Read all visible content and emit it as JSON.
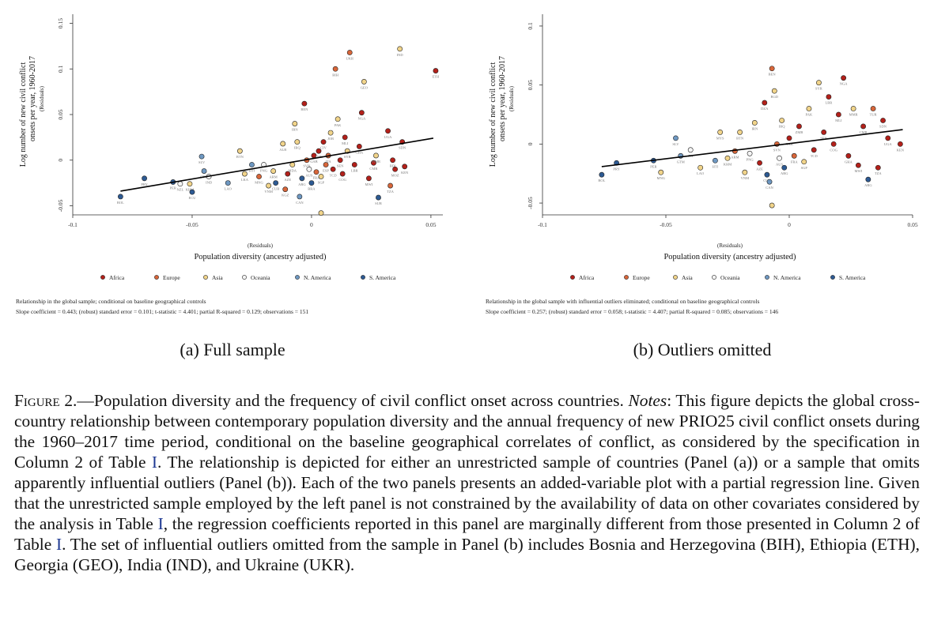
{
  "panels": [
    {
      "id": "a",
      "subcaption": "(a) Full sample",
      "note_line1": "Relationship in the global sample; conditional on baseline geographical controls",
      "note_line2": "Slope coefficient = 0.443; (robust) standard error = 0.101; t-statistic = 4.401; partial R-squared = 0.129; observations = 151"
    },
    {
      "id": "b",
      "subcaption": "(b) Outliers omitted",
      "note_line1": "Relationship in the global sample with influential outliers eliminated; conditional on baseline geographical controls",
      "note_line2": "Slope coefficient = 0.257; (robust) standard error = 0.058; t-statistic = 4.407; partial R-squared = 0.085; observations = 146"
    }
  ],
  "colors": {
    "Africa": "#b3201a",
    "Europe": "#d8663a",
    "Asia": "#f1d48a",
    "Oceania": "#f4f4f4",
    "N. America": "#6e98c2",
    "S. America": "#2d5a93"
  },
  "caption": {
    "figure_label": "Figure 2.",
    "title": "—Population diversity and the frequency of civil conflict onset across countries. ",
    "notes_label": "Notes",
    "text_1": ": This figure depicts the global cross-country relationship between contemporary population diversity and the annual frequency of new PRIO25 civil conflict onsets during the 1960–2017 time period, conditional on the baseline geographical correlates of conflict, as considered by the specification in Column 2 of Table ",
    "ref_1": "I",
    "text_2": ". The relationship is depicted for either an unrestricted sample of countries (Panel (a)) or a sample that omits apparently influential outliers (Panel (b)). Each of the two panels presents an added-variable plot with a partial regression line. Given that the unrestricted sample employed by the left panel is not constrained by the availability of data on other covariates considered by the analysis in Table ",
    "ref_2": "I",
    "text_3": ", the regression coefficients reported in this panel are marginally different from those presented in Column 2 of Table ",
    "ref_3": "I",
    "text_4": ". The set of influential outliers omitted from the sample in Panel (b) includes Bosnia and Herzegovina (BIH), Ethiopia (ETH), Georgia (GEO), India (IND), and Ukraine (UKR)."
  },
  "chart_data": [
    {
      "type": "scatter",
      "panel": "a",
      "title": "",
      "xlabel": "Population diversity (ancestry adjusted)",
      "xlabel_sub": "(Residuals)",
      "ylabel": "Log number of new civil conflict onsets per year, 1960-2017",
      "ylabel_sub": "(Residuals)",
      "xlim": [
        -0.1,
        0.055
      ],
      "ylim": [
        -0.06,
        0.16
      ],
      "xticks": [
        -0.1,
        -0.05,
        0,
        0.05
      ],
      "xtick_labels": [
        "-0.1",
        "-0.05",
        "0",
        "0.05"
      ],
      "yticks": [
        -0.05,
        0,
        0.05,
        0.1,
        0.15
      ],
      "ytick_labels": [
        "-0.05",
        "0",
        "0.05",
        "0.1",
        "0.15"
      ],
      "grid": false,
      "legend": [
        "Africa",
        "Europe",
        "Asia",
        "Oceania",
        "N. America",
        "S. America"
      ],
      "legend_position": "bottom",
      "fit_line": {
        "slope": 0.443,
        "intercept": 0.0015,
        "x_range": [
          -0.08,
          0.051
        ]
      },
      "points": [
        {
          "x": -0.08,
          "y": -0.04,
          "region": "S. America",
          "label": "BOL"
        },
        {
          "x": -0.07,
          "y": -0.02,
          "region": "S. America",
          "label": "PRY"
        },
        {
          "x": -0.058,
          "y": -0.024,
          "region": "S. America",
          "label": "PER"
        },
        {
          "x": -0.055,
          "y": -0.026,
          "region": "Oceania",
          "label": "NZL"
        },
        {
          "x": -0.051,
          "y": -0.026,
          "region": "Asia",
          "label": "KHM"
        },
        {
          "x": -0.05,
          "y": -0.035,
          "region": "S. America",
          "label": "ECU"
        },
        {
          "x": -0.046,
          "y": 0.004,
          "region": "N. America",
          "label": "SLV"
        },
        {
          "x": -0.045,
          "y": -0.012,
          "region": "N. America",
          "label": "GTM"
        },
        {
          "x": -0.043,
          "y": -0.018,
          "region": "Oceania",
          "label": "IND"
        },
        {
          "x": -0.035,
          "y": -0.025,
          "region": "N. America",
          "label": "LAO"
        },
        {
          "x": -0.03,
          "y": 0.01,
          "region": "Asia",
          "label": "BTN"
        },
        {
          "x": -0.028,
          "y": -0.015,
          "region": "Asia",
          "label": "LKA"
        },
        {
          "x": -0.025,
          "y": -0.005,
          "region": "N. America",
          "label": "HTI"
        },
        {
          "x": -0.022,
          "y": -0.018,
          "region": "Europe",
          "label": "MNG"
        },
        {
          "x": -0.02,
          "y": -0.005,
          "region": "Oceania",
          "label": "PNG"
        },
        {
          "x": -0.018,
          "y": -0.028,
          "region": "Asia",
          "label": "VNM"
        },
        {
          "x": -0.016,
          "y": -0.012,
          "region": "Asia",
          "label": "ARM"
        },
        {
          "x": -0.015,
          "y": -0.025,
          "region": "S. America",
          "label": "CUB"
        },
        {
          "x": -0.012,
          "y": 0.018,
          "region": "Asia",
          "label": "ALB"
        },
        {
          "x": -0.011,
          "y": -0.032,
          "region": "Europe",
          "label": "KGZ"
        },
        {
          "x": -0.01,
          "y": -0.015,
          "region": "Africa",
          "label": "AZE"
        },
        {
          "x": -0.008,
          "y": -0.005,
          "region": "Asia",
          "label": "MDA"
        },
        {
          "x": -0.007,
          "y": 0.04,
          "region": "Asia",
          "label": "IRN"
        },
        {
          "x": -0.006,
          "y": 0.02,
          "region": "Asia",
          "label": "IRQ"
        },
        {
          "x": -0.005,
          "y": -0.04,
          "region": "N. America",
          "label": "CAN"
        },
        {
          "x": -0.004,
          "y": -0.02,
          "region": "S. America",
          "label": "ARG"
        },
        {
          "x": -0.003,
          "y": 0.062,
          "region": "Africa",
          "label": "BEN"
        },
        {
          "x": -0.002,
          "y": 0.0,
          "region": "Europe",
          "label": "SVN"
        },
        {
          "x": -0.001,
          "y": -0.01,
          "region": "Oceania",
          "label": "AUS"
        },
        {
          "x": 0.0,
          "y": -0.025,
          "region": "S. America",
          "label": "BRA"
        },
        {
          "x": 0.001,
          "y": 0.005,
          "region": "Africa",
          "label": "GAB"
        },
        {
          "x": 0.002,
          "y": -0.013,
          "region": "Europe",
          "label": "FRA"
        },
        {
          "x": 0.003,
          "y": 0.01,
          "region": "Africa",
          "label": "ZMB"
        },
        {
          "x": 0.004,
          "y": -0.018,
          "region": "Asia",
          "label": "SGP"
        },
        {
          "x": 0.005,
          "y": 0.02,
          "region": "Africa",
          "label": "CIV"
        },
        {
          "x": 0.006,
          "y": -0.005,
          "region": "Europe",
          "label": "ESP"
        },
        {
          "x": 0.007,
          "y": 0.005,
          "region": "Europe",
          "label": "ITA"
        },
        {
          "x": 0.008,
          "y": 0.03,
          "region": "Asia",
          "label": "JOR"
        },
        {
          "x": 0.009,
          "y": -0.01,
          "region": "Africa",
          "label": "TCD"
        },
        {
          "x": 0.01,
          "y": 0.1,
          "region": "Europe",
          "label": "BIH"
        },
        {
          "x": 0.011,
          "y": 0.045,
          "region": "Asia",
          "label": "PAK"
        },
        {
          "x": 0.012,
          "y": 0.0,
          "region": "Africa",
          "label": "SEN"
        },
        {
          "x": 0.013,
          "y": -0.015,
          "region": "Africa",
          "label": "COG"
        },
        {
          "x": 0.014,
          "y": 0.025,
          "region": "Africa",
          "label": "MLI"
        },
        {
          "x": 0.015,
          "y": 0.01,
          "region": "Asia",
          "label": "SYR"
        },
        {
          "x": 0.016,
          "y": 0.118,
          "region": "Europe",
          "label": "UKR"
        },
        {
          "x": 0.018,
          "y": -0.005,
          "region": "Africa",
          "label": "LBR"
        },
        {
          "x": 0.02,
          "y": 0.015,
          "region": "Africa",
          "label": "GHA"
        },
        {
          "x": 0.021,
          "y": 0.052,
          "region": "Africa",
          "label": "NGA"
        },
        {
          "x": 0.022,
          "y": 0.086,
          "region": "Asia",
          "label": "GEO"
        },
        {
          "x": 0.024,
          "y": -0.02,
          "region": "Africa",
          "label": "MWI"
        },
        {
          "x": 0.026,
          "y": -0.003,
          "region": "Africa",
          "label": "CMR"
        },
        {
          "x": 0.027,
          "y": 0.005,
          "region": "Asia",
          "label": "MMR"
        },
        {
          "x": 0.028,
          "y": -0.041,
          "region": "S. America",
          "label": "SUR"
        },
        {
          "x": 0.032,
          "y": 0.032,
          "region": "Africa",
          "label": "UGA"
        },
        {
          "x": 0.033,
          "y": -0.028,
          "region": "Europe",
          "label": "TZA"
        },
        {
          "x": 0.034,
          "y": 0.0,
          "region": "Africa",
          "label": "BDI"
        },
        {
          "x": 0.035,
          "y": -0.01,
          "region": "Africa",
          "label": "MOZ"
        },
        {
          "x": 0.037,
          "y": 0.122,
          "region": "Asia",
          "label": "IND"
        },
        {
          "x": 0.038,
          "y": 0.02,
          "region": "Africa",
          "label": "SDN"
        },
        {
          "x": 0.039,
          "y": -0.007,
          "region": "Africa",
          "label": "KEN"
        },
        {
          "x": 0.052,
          "y": 0.098,
          "region": "Africa",
          "label": "ETH"
        },
        {
          "x": 0.004,
          "y": -0.058,
          "region": "Asia",
          "label": ""
        }
      ]
    },
    {
      "type": "scatter",
      "panel": "b",
      "title": "",
      "xlabel": "Population diversity (ancestry adjusted)",
      "xlabel_sub": "(Residuals)",
      "ylabel": "Log number of new civil conflict onsets per year, 1960-2017",
      "ylabel_sub": "(Residuals)",
      "xlim": [
        -0.1,
        0.05
      ],
      "ylim": [
        -0.06,
        0.11
      ],
      "xticks": [
        -0.1,
        -0.05,
        0,
        0.05
      ],
      "xtick_labels": [
        "-0.1",
        "-0.05",
        "0",
        "0.05"
      ],
      "yticks": [
        -0.05,
        0,
        0.05,
        0.1
      ],
      "ytick_labels": [
        "-0.05",
        "0",
        "0.05",
        "0.1"
      ],
      "grid": false,
      "legend": [
        "Africa",
        "Europe",
        "Asia",
        "Oceania",
        "N. America",
        "S. America"
      ],
      "legend_position": "bottom",
      "fit_line": {
        "slope": 0.257,
        "intercept": 0.0004,
        "x_range": [
          -0.076,
          0.046
        ]
      },
      "points": [
        {
          "x": -0.076,
          "y": -0.026,
          "region": "S. America",
          "label": "BOL"
        },
        {
          "x": -0.07,
          "y": -0.016,
          "region": "S. America",
          "label": "PRY"
        },
        {
          "x": -0.055,
          "y": -0.014,
          "region": "S. America",
          "label": "PER"
        },
        {
          "x": -0.052,
          "y": -0.024,
          "region": "Asia",
          "label": "MNG"
        },
        {
          "x": -0.046,
          "y": 0.005,
          "region": "N. America",
          "label": "SLV"
        },
        {
          "x": -0.044,
          "y": -0.01,
          "region": "N. America",
          "label": "GTM"
        },
        {
          "x": -0.04,
          "y": -0.005,
          "region": "Oceania",
          "label": "FJI"
        },
        {
          "x": -0.036,
          "y": -0.02,
          "region": "Asia",
          "label": "LAO"
        },
        {
          "x": -0.03,
          "y": -0.014,
          "region": "N. America",
          "label": "HTI"
        },
        {
          "x": -0.028,
          "y": 0.01,
          "region": "Asia",
          "label": "MYS"
        },
        {
          "x": -0.025,
          "y": -0.012,
          "region": "Asia",
          "label": "KHM"
        },
        {
          "x": -0.022,
          "y": -0.006,
          "region": "Europe",
          "label": "ARM"
        },
        {
          "x": -0.02,
          "y": 0.01,
          "region": "Asia",
          "label": "BTN"
        },
        {
          "x": -0.018,
          "y": -0.024,
          "region": "Asia",
          "label": "VNM"
        },
        {
          "x": -0.016,
          "y": -0.008,
          "region": "Oceania",
          "label": "PNG"
        },
        {
          "x": -0.014,
          "y": 0.018,
          "region": "Asia",
          "label": "IRN"
        },
        {
          "x": -0.012,
          "y": -0.016,
          "region": "Africa",
          "label": "AZE"
        },
        {
          "x": -0.01,
          "y": 0.035,
          "region": "Africa",
          "label": "DZA"
        },
        {
          "x": -0.009,
          "y": -0.026,
          "region": "S. America",
          "label": "CUB"
        },
        {
          "x": -0.008,
          "y": -0.032,
          "region": "N. America",
          "label": "CAN"
        },
        {
          "x": -0.007,
          "y": 0.064,
          "region": "Europe",
          "label": "BEN"
        },
        {
          "x": -0.006,
          "y": 0.045,
          "region": "Asia",
          "label": "BGD"
        },
        {
          "x": -0.005,
          "y": 0.0,
          "region": "Europe",
          "label": "SVN"
        },
        {
          "x": -0.004,
          "y": -0.012,
          "region": "Oceania",
          "label": "AUS"
        },
        {
          "x": -0.003,
          "y": 0.02,
          "region": "Asia",
          "label": "IRQ"
        },
        {
          "x": -0.002,
          "y": -0.02,
          "region": "S. America",
          "label": "ARG"
        },
        {
          "x": 0.0,
          "y": 0.005,
          "region": "Africa",
          "label": "GAB"
        },
        {
          "x": 0.002,
          "y": -0.01,
          "region": "Europe",
          "label": "FRA"
        },
        {
          "x": 0.004,
          "y": 0.015,
          "region": "Africa",
          "label": "ZMB"
        },
        {
          "x": 0.006,
          "y": -0.015,
          "region": "Asia",
          "label": "SGP"
        },
        {
          "x": 0.008,
          "y": 0.03,
          "region": "Asia",
          "label": "PAK"
        },
        {
          "x": 0.01,
          "y": -0.005,
          "region": "Africa",
          "label": "TCD"
        },
        {
          "x": 0.012,
          "y": 0.052,
          "region": "Asia",
          "label": "SYR"
        },
        {
          "x": 0.014,
          "y": 0.01,
          "region": "Africa",
          "label": "SEN"
        },
        {
          "x": 0.016,
          "y": 0.04,
          "region": "Africa",
          "label": "LBR"
        },
        {
          "x": 0.018,
          "y": 0.0,
          "region": "Africa",
          "label": "COG"
        },
        {
          "x": 0.02,
          "y": 0.025,
          "region": "Africa",
          "label": "MLI"
        },
        {
          "x": 0.022,
          "y": 0.056,
          "region": "Africa",
          "label": "NGA"
        },
        {
          "x": 0.024,
          "y": -0.01,
          "region": "Africa",
          "label": "GHA"
        },
        {
          "x": 0.026,
          "y": 0.03,
          "region": "Asia",
          "label": "MMR"
        },
        {
          "x": 0.028,
          "y": -0.018,
          "region": "Africa",
          "label": "MWI"
        },
        {
          "x": 0.03,
          "y": 0.015,
          "region": "Africa",
          "label": "CMR"
        },
        {
          "x": 0.032,
          "y": -0.03,
          "region": "S. America",
          "label": "ARG"
        },
        {
          "x": 0.034,
          "y": 0.03,
          "region": "Europe",
          "label": "TUR"
        },
        {
          "x": 0.036,
          "y": -0.02,
          "region": "Africa",
          "label": "TZA"
        },
        {
          "x": 0.038,
          "y": 0.02,
          "region": "Africa",
          "label": "SDN"
        },
        {
          "x": 0.04,
          "y": 0.005,
          "region": "Africa",
          "label": "UGA"
        },
        {
          "x": 0.045,
          "y": 0.0,
          "region": "Africa",
          "label": "KEN"
        },
        {
          "x": -0.007,
          "y": -0.052,
          "region": "Asia",
          "label": ""
        }
      ]
    }
  ]
}
